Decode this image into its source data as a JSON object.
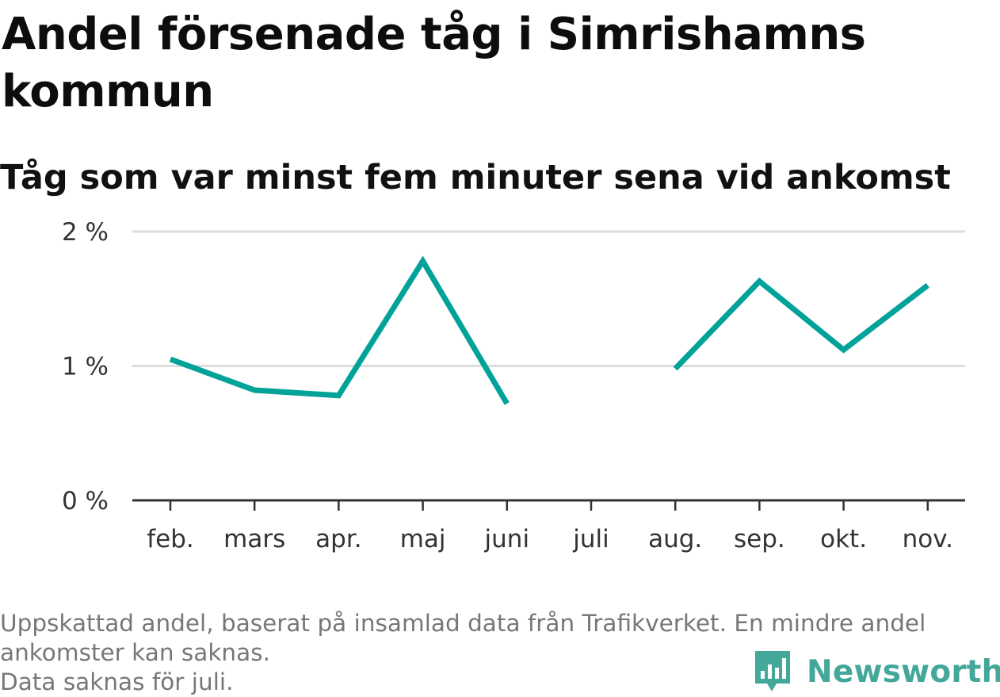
{
  "header": {
    "title": "Andel försenade tåg i Simrishamns kommun",
    "subtitle": "Tåg som var minst fem minuter sena vid ankomst"
  },
  "colors": {
    "line": "#00a299",
    "grid": "#dddddd",
    "axis": "#333333",
    "brand": "#43a79a"
  },
  "chart_data": {
    "type": "line",
    "title": "Andel försenade tåg i Simrishamns kommun",
    "subtitle": "Tåg som var minst fem minuter sena vid ankomst",
    "categories": [
      "feb.",
      "mars",
      "apr.",
      "maj",
      "juni",
      "juli",
      "aug.",
      "sep.",
      "okt.",
      "nov."
    ],
    "series": [
      {
        "values": [
          1.05,
          0.82,
          0.78,
          1.78,
          0.72,
          null,
          0.98,
          1.63,
          1.12,
          1.6
        ]
      }
    ],
    "y_ticks": [
      "0 %",
      "1 %",
      "2 %"
    ],
    "ylim": [
      0,
      2
    ],
    "grid": true,
    "xlabel": "",
    "ylabel": ""
  },
  "footer": {
    "note_line1": "Uppskattad andel, baserat på insamlad data från Trafikverket. En mindre andel ankomster kan saknas.",
    "note_line2": "Data saknas för juli.",
    "brand": "Newsworthy",
    "brand_icon": "bar-chart-speech-bubble-icon"
  }
}
